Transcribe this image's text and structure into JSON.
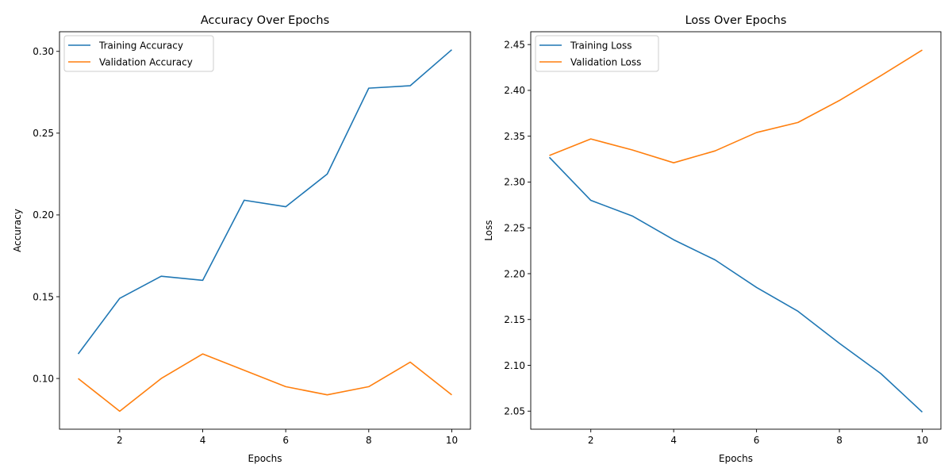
{
  "chart_data": [
    {
      "type": "line",
      "title": "Accuracy Over Epochs",
      "xlabel": "Epochs",
      "ylabel": "Accuracy",
      "x": [
        1,
        2,
        3,
        4,
        5,
        6,
        7,
        8,
        9,
        10
      ],
      "xlim": [
        0.55,
        10.45
      ],
      "ylim": [
        0.069,
        0.312
      ],
      "xticks": [
        2,
        4,
        6,
        8,
        10
      ],
      "xtick_labels": [
        "2",
        "4",
        "6",
        "8",
        "10"
      ],
      "yticks": [
        0.1,
        0.15,
        0.2,
        0.25,
        0.3
      ],
      "ytick_labels": [
        "0.10",
        "0.15",
        "0.20",
        "0.25",
        "0.30"
      ],
      "grid": false,
      "legend_position": "top-left",
      "series": [
        {
          "name": "Training Accuracy",
          "color": "#1f77b4",
          "values": [
            0.115,
            0.149,
            0.1625,
            0.16,
            0.209,
            0.205,
            0.225,
            0.2775,
            0.279,
            0.301
          ]
        },
        {
          "name": "Validation Accuracy",
          "color": "#ff7f0e",
          "values": [
            0.1,
            0.08,
            0.1,
            0.115,
            0.105,
            0.095,
            0.09,
            0.095,
            0.11,
            0.09
          ]
        }
      ]
    },
    {
      "type": "line",
      "title": "Loss Over Epochs",
      "xlabel": "Epochs",
      "ylabel": "Loss",
      "x": [
        1,
        2,
        3,
        4,
        5,
        6,
        7,
        8,
        9,
        10
      ],
      "xlim": [
        0.55,
        10.45
      ],
      "ylim": [
        2.0303,
        2.464
      ],
      "xticks": [
        2,
        4,
        6,
        8,
        10
      ],
      "xtick_labels": [
        "2",
        "4",
        "6",
        "8",
        "10"
      ],
      "yticks": [
        2.05,
        2.1,
        2.15,
        2.2,
        2.25,
        2.3,
        2.35,
        2.4,
        2.45
      ],
      "ytick_labels": [
        "2.05",
        "2.10",
        "2.15",
        "2.20",
        "2.25",
        "2.30",
        "2.35",
        "2.40",
        "2.45"
      ],
      "grid": false,
      "legend_position": "top-left",
      "series": [
        {
          "name": "Training Loss",
          "color": "#1f77b4",
          "values": [
            2.327,
            2.28,
            2.263,
            2.237,
            2.215,
            2.185,
            2.159,
            2.124,
            2.091,
            2.049
          ]
        },
        {
          "name": "Validation Loss",
          "color": "#ff7f0e",
          "values": [
            2.329,
            2.347,
            2.335,
            2.321,
            2.334,
            2.354,
            2.365,
            2.389,
            2.416,
            2.444
          ]
        }
      ]
    }
  ]
}
